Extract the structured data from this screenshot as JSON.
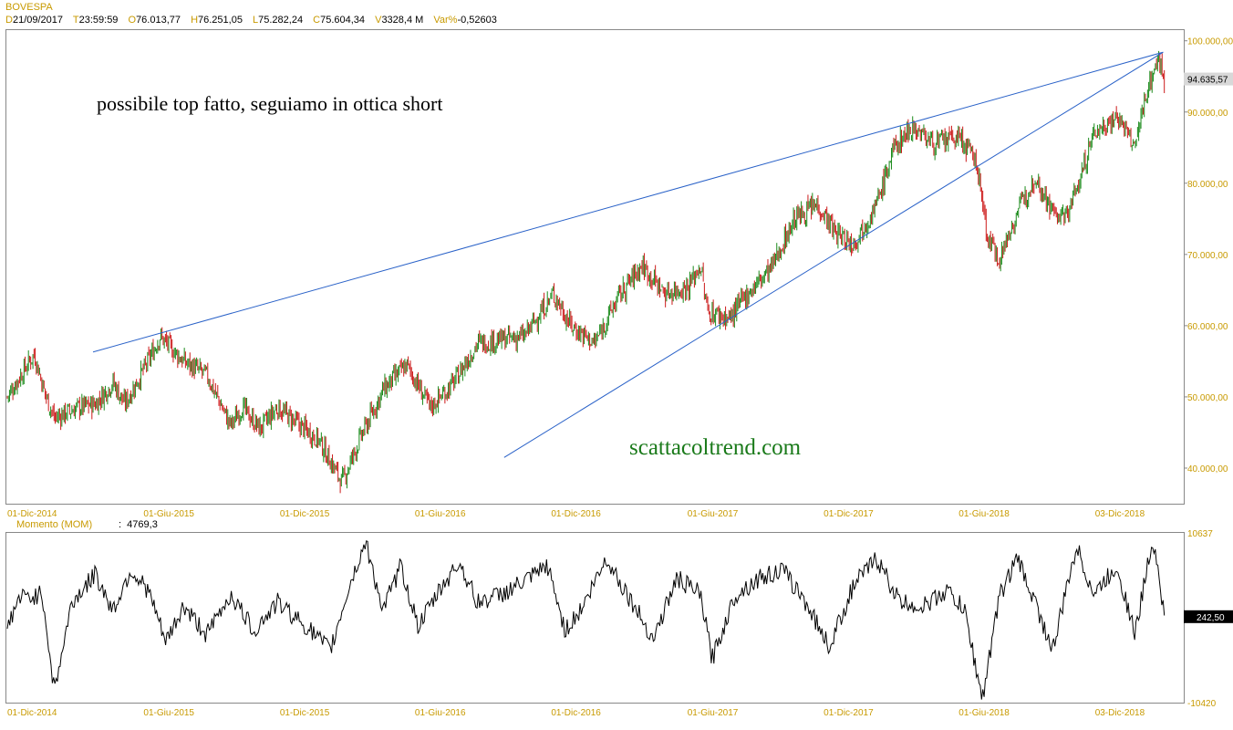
{
  "header": {
    "symbol": "BOVESPA",
    "fields": [
      {
        "key": "D",
        "value": "21/09/2017"
      },
      {
        "key": "T",
        "value": "23:59:59"
      },
      {
        "key": "O",
        "value": "76.013,77"
      },
      {
        "key": "H",
        "value": "76.251,05"
      },
      {
        "key": "L",
        "value": "75.282,24"
      },
      {
        "key": "C",
        "value": "75.604,34"
      },
      {
        "key": "V",
        "value": "3328,4 M"
      },
      {
        "key": "Var%",
        "value": "-0,52603"
      }
    ]
  },
  "annotations": {
    "comment": "possibile top fatto, seguiamo in ottica short",
    "watermark": "scattacoltrend.com"
  },
  "colors": {
    "up": "#1a8a1a",
    "down": "#cc1a1a",
    "trendline": "#2a62c8",
    "axis_text": "#c89a00",
    "watermark": "#1a7a1a"
  },
  "chart_data": [
    {
      "type": "candlestick",
      "title": "BOVESPA",
      "x_ticks": [
        "01-Dic-2014",
        "01-Giu-2015",
        "01-Dic-2015",
        "01-Giu-2016",
        "01-Dic-2016",
        "01-Giu-2017",
        "01-Dic-2017",
        "01-Giu-2018",
        "03-Dic-2018"
      ],
      "y_ticks": [
        "40.000,00",
        "50.000,00",
        "60.000,00",
        "70.000,00",
        "80.000,00",
        "90.000,00",
        "100.000,00"
      ],
      "ylim": [
        35000,
        101500
      ],
      "last_value_label": "94.635,57",
      "path_points": [
        {
          "x": 0.0,
          "y": 50000
        },
        {
          "x": 0.015,
          "y": 54000
        },
        {
          "x": 0.023,
          "y": 56000
        },
        {
          "x": 0.032,
          "y": 50500
        },
        {
          "x": 0.04,
          "y": 47000
        },
        {
          "x": 0.06,
          "y": 48500
        },
        {
          "x": 0.075,
          "y": 49000
        },
        {
          "x": 0.09,
          "y": 52000
        },
        {
          "x": 0.1,
          "y": 49000
        },
        {
          "x": 0.12,
          "y": 55000
        },
        {
          "x": 0.13,
          "y": 58500
        },
        {
          "x": 0.15,
          "y": 55000
        },
        {
          "x": 0.17,
          "y": 53000
        },
        {
          "x": 0.19,
          "y": 46000
        },
        {
          "x": 0.2,
          "y": 48500
        },
        {
          "x": 0.215,
          "y": 45500
        },
        {
          "x": 0.23,
          "y": 48500
        },
        {
          "x": 0.245,
          "y": 46500
        },
        {
          "x": 0.265,
          "y": 44000
        },
        {
          "x": 0.285,
          "y": 38000
        },
        {
          "x": 0.3,
          "y": 44000
        },
        {
          "x": 0.32,
          "y": 51000
        },
        {
          "x": 0.34,
          "y": 54500
        },
        {
          "x": 0.36,
          "y": 48500
        },
        {
          "x": 0.38,
          "y": 52000
        },
        {
          "x": 0.4,
          "y": 57500
        },
        {
          "x": 0.42,
          "y": 58000
        },
        {
          "x": 0.44,
          "y": 58500
        },
        {
          "x": 0.465,
          "y": 64500
        },
        {
          "x": 0.48,
          "y": 60000
        },
        {
          "x": 0.5,
          "y": 57500
        },
        {
          "x": 0.52,
          "y": 64000
        },
        {
          "x": 0.54,
          "y": 68500
        },
        {
          "x": 0.56,
          "y": 64500
        },
        {
          "x": 0.58,
          "y": 65500
        },
        {
          "x": 0.59,
          "y": 68500
        },
        {
          "x": 0.596,
          "y": 62000
        },
        {
          "x": 0.615,
          "y": 61000
        },
        {
          "x": 0.63,
          "y": 64500
        },
        {
          "x": 0.65,
          "y": 68000
        },
        {
          "x": 0.67,
          "y": 75000
        },
        {
          "x": 0.69,
          "y": 77000
        },
        {
          "x": 0.705,
          "y": 73000
        },
        {
          "x": 0.72,
          "y": 71500
        },
        {
          "x": 0.74,
          "y": 77000
        },
        {
          "x": 0.755,
          "y": 85000
        },
        {
          "x": 0.77,
          "y": 88000
        },
        {
          "x": 0.79,
          "y": 85500
        },
        {
          "x": 0.81,
          "y": 86500
        },
        {
          "x": 0.825,
          "y": 83000
        },
        {
          "x": 0.835,
          "y": 72000
        },
        {
          "x": 0.845,
          "y": 69500
        },
        {
          "x": 0.86,
          "y": 76000
        },
        {
          "x": 0.875,
          "y": 81000
        },
        {
          "x": 0.89,
          "y": 76000
        },
        {
          "x": 0.9,
          "y": 75000
        },
        {
          "x": 0.91,
          "y": 79000
        },
        {
          "x": 0.925,
          "y": 87000
        },
        {
          "x": 0.945,
          "y": 89500
        },
        {
          "x": 0.96,
          "y": 85000
        },
        {
          "x": 0.97,
          "y": 93000
        },
        {
          "x": 0.98,
          "y": 97500
        },
        {
          "x": 0.985,
          "y": 94600
        }
      ]
    },
    {
      "type": "line",
      "title": "Momento (MOM)",
      "current_value": "4769,3",
      "x_ticks": [
        "01-Dic-2014",
        "01-Giu-2015",
        "01-Dic-2015",
        "01-Giu-2016",
        "01-Dic-2016",
        "01-Giu-2017",
        "01-Dic-2017",
        "01-Giu-2018",
        "03-Dic-2018"
      ],
      "y_ticks": [
        "10637",
        "-10420"
      ],
      "ylim": [
        -10420,
        10637
      ],
      "last_value_label": "242,50",
      "path_points": [
        {
          "x": 0.0,
          "y": -1000
        },
        {
          "x": 0.01,
          "y": 2500
        },
        {
          "x": 0.03,
          "y": 3000
        },
        {
          "x": 0.04,
          "y": -9000
        },
        {
          "x": 0.055,
          "y": 2000
        },
        {
          "x": 0.075,
          "y": 5500
        },
        {
          "x": 0.09,
          "y": 1000
        },
        {
          "x": 0.105,
          "y": 6000
        },
        {
          "x": 0.12,
          "y": 3500
        },
        {
          "x": 0.135,
          "y": -3000
        },
        {
          "x": 0.15,
          "y": 1500
        },
        {
          "x": 0.17,
          "y": -2000
        },
        {
          "x": 0.19,
          "y": 3000
        },
        {
          "x": 0.21,
          "y": -1500
        },
        {
          "x": 0.23,
          "y": 2000
        },
        {
          "x": 0.255,
          "y": -1000
        },
        {
          "x": 0.275,
          "y": -4000
        },
        {
          "x": 0.29,
          "y": 3500
        },
        {
          "x": 0.305,
          "y": 9500
        },
        {
          "x": 0.32,
          "y": 1000
        },
        {
          "x": 0.335,
          "y": 6500
        },
        {
          "x": 0.35,
          "y": -1000
        },
        {
          "x": 0.37,
          "y": 4000
        },
        {
          "x": 0.385,
          "y": 7000
        },
        {
          "x": 0.4,
          "y": 2000
        },
        {
          "x": 0.42,
          "y": 3000
        },
        {
          "x": 0.44,
          "y": 4500
        },
        {
          "x": 0.46,
          "y": 6500
        },
        {
          "x": 0.475,
          "y": -1500
        },
        {
          "x": 0.49,
          "y": 1500
        },
        {
          "x": 0.51,
          "y": 7500
        },
        {
          "x": 0.53,
          "y": 2500
        },
        {
          "x": 0.55,
          "y": -2500
        },
        {
          "x": 0.57,
          "y": 5000
        },
        {
          "x": 0.59,
          "y": 3000
        },
        {
          "x": 0.6,
          "y": -5000
        },
        {
          "x": 0.62,
          "y": 3000
        },
        {
          "x": 0.64,
          "y": 5000
        },
        {
          "x": 0.66,
          "y": 6000
        },
        {
          "x": 0.68,
          "y": 2000
        },
        {
          "x": 0.7,
          "y": -3500
        },
        {
          "x": 0.72,
          "y": 4000
        },
        {
          "x": 0.74,
          "y": 7500
        },
        {
          "x": 0.76,
          "y": 2000
        },
        {
          "x": 0.78,
          "y": 1500
        },
        {
          "x": 0.8,
          "y": 3500
        },
        {
          "x": 0.815,
          "y": 1000
        },
        {
          "x": 0.83,
          "y": -10000
        },
        {
          "x": 0.845,
          "y": 3000
        },
        {
          "x": 0.86,
          "y": 7500
        },
        {
          "x": 0.875,
          "y": 2000
        },
        {
          "x": 0.89,
          "y": -4000
        },
        {
          "x": 0.91,
          "y": 9000
        },
        {
          "x": 0.925,
          "y": 3000
        },
        {
          "x": 0.945,
          "y": 6500
        },
        {
          "x": 0.96,
          "y": -2000
        },
        {
          "x": 0.975,
          "y": 10000
        },
        {
          "x": 0.98,
          "y": 6000
        },
        {
          "x": 0.985,
          "y": 242.5
        }
      ]
    }
  ]
}
